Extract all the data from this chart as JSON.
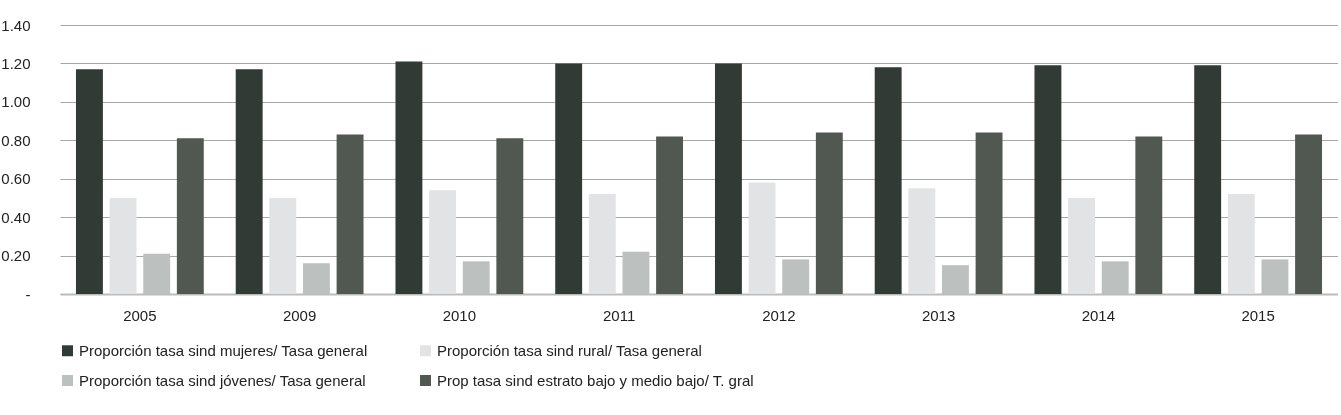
{
  "chart_data": {
    "type": "bar",
    "categories": [
      "2005",
      "2009",
      "2010",
      "2011",
      "2012",
      "2013",
      "2014",
      "2015"
    ],
    "series": [
      {
        "name": "Proporción tasa sind mujeres/ Tasa general",
        "color": "#323a35",
        "values": [
          1.17,
          1.17,
          1.21,
          1.2,
          1.2,
          1.18,
          1.19,
          1.19
        ]
      },
      {
        "name": "Proporción tasa sind rural/ Tasa general",
        "color": "#e2e3e4",
        "values": [
          0.5,
          0.5,
          0.54,
          0.52,
          0.58,
          0.55,
          0.5,
          0.52
        ]
      },
      {
        "name": "Proporción tasa sind jóvenes/ Tasa general",
        "color": "#bcc0bf",
        "values": [
          0.21,
          0.16,
          0.17,
          0.22,
          0.18,
          0.15,
          0.17,
          0.18
        ]
      },
      {
        "name": "Prop tasa sind estrato bajo y medio bajo/ T. gral",
        "color": "#505851",
        "values": [
          0.81,
          0.83,
          0.81,
          0.82,
          0.84,
          0.84,
          0.82,
          0.83
        ]
      }
    ],
    "ylim": [
      0,
      1.4
    ],
    "yticks": [
      {
        "value": 0,
        "label": "-"
      },
      {
        "value": 0.2,
        "label": "0.20"
      },
      {
        "value": 0.4,
        "label": "0.40"
      },
      {
        "value": 0.6,
        "label": "0.60"
      },
      {
        "value": 0.8,
        "label": "0.80"
      },
      {
        "value": 1.0,
        "label": "1.00"
      },
      {
        "value": 1.2,
        "label": "1.20"
      },
      {
        "value": 1.4,
        "label": "1.40"
      }
    ],
    "grid": "y",
    "legend": "bottom"
  }
}
